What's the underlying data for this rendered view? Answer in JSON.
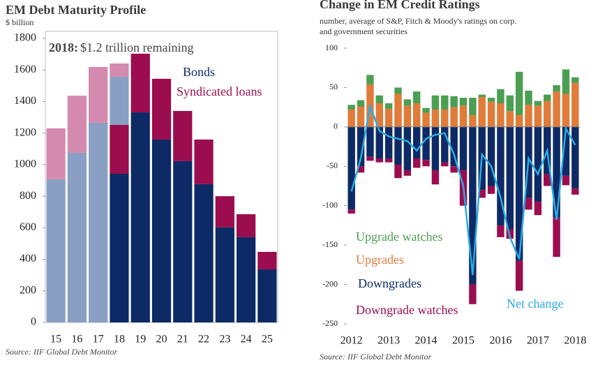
{
  "chart_data": [
    {
      "type": "bar",
      "title": "EM Debt Maturity Profile",
      "y_label": "$ billion",
      "annotation_bold": "2018:",
      "annotation": "$1.2 trillion remaining",
      "source": "Source: IIF Global Debt Monitor",
      "categories": [
        "15",
        "16",
        "17",
        "18",
        "19",
        "20",
        "21",
        "22",
        "23",
        "24",
        "25"
      ],
      "ylim": [
        0,
        1800
      ],
      "yticks": [
        0,
        200,
        400,
        600,
        800,
        1000,
        1200,
        1400,
        1600,
        1800
      ],
      "series": [
        {
          "name": "Bonds",
          "color": "#0d2a66",
          "values": [
            null,
            null,
            null,
            942,
            1331,
            1159,
            1022,
            876,
            602,
            540,
            336
          ]
        },
        {
          "name": "Syndicated loans",
          "color": "#9b0d4f",
          "values": [
            null,
            null,
            null,
            310,
            372,
            385,
            318,
            283,
            198,
            146,
            111
          ]
        },
        {
          "color": "#8a9fc4",
          "values": [
            907,
            1075,
            1265,
            305,
            null,
            null,
            null,
            null,
            null,
            null,
            null
          ]
        },
        {
          "color": "#d48aaf",
          "values": [
            323,
            362,
            354,
            84,
            null,
            null,
            null,
            null,
            null,
            null,
            null
          ]
        }
      ]
    },
    {
      "type": "bar",
      "title": "Change in EM Credit Ratings",
      "subtitle": [
        "number, average of S&P, Fitch & Moody's ratings on corp.",
        "and government securities"
      ],
      "source": "Source: IIF Global Debt Monitor",
      "categories": [
        "2012",
        null,
        null,
        null,
        "2013",
        null,
        null,
        null,
        "2014",
        null,
        null,
        null,
        "2015",
        null,
        null,
        null,
        "2016",
        null,
        null,
        null,
        "2017",
        null,
        null,
        null,
        "2018"
      ],
      "ylim": [
        -250,
        100
      ],
      "yticks": [
        -250,
        -200,
        -150,
        -100,
        -50,
        0,
        50,
        100
      ],
      "series": [
        {
          "name": "Upgrades",
          "color": "#e07b39",
          "values": [
            22,
            26,
            54,
            30,
            23,
            42,
            27,
            30,
            18,
            22,
            22,
            25,
            27,
            15,
            38,
            32,
            30,
            20,
            15,
            28,
            27,
            33,
            45,
            42,
            56
          ]
        },
        {
          "name": "Upgrade watches",
          "color": "#4c9e52",
          "values": [
            6,
            8,
            12,
            10,
            7,
            8,
            8,
            15,
            6,
            18,
            18,
            14,
            10,
            22,
            3,
            5,
            18,
            20,
            55,
            18,
            6,
            8,
            8,
            31,
            7
          ]
        },
        {
          "name": "Downgrades",
          "color": "#0d2a66",
          "values": [
            -105,
            -50,
            -38,
            -40,
            -40,
            -48,
            -55,
            -40,
            -42,
            -55,
            -45,
            -50,
            -55,
            -200,
            -80,
            -75,
            -125,
            -130,
            -170,
            -90,
            -95,
            -60,
            -115,
            -62,
            -78
          ]
        },
        {
          "name": "Downgrade watches",
          "color": "#9b0d4f",
          "values": [
            -5,
            -8,
            -5,
            -5,
            -5,
            -17,
            -7,
            -12,
            -8,
            -18,
            -5,
            -8,
            -45,
            -25,
            -10,
            -10,
            -15,
            -12,
            -38,
            -15,
            -17,
            -15,
            -50,
            -12,
            -8
          ]
        },
        {
          "name": "Net change",
          "type": "line",
          "color": "#29abe2",
          "values": [
            -82,
            -40,
            26,
            -5,
            -12,
            -15,
            -18,
            -30,
            -15,
            -10,
            -8,
            -35,
            -75,
            -188,
            -35,
            -50,
            -90,
            -140,
            -168,
            -40,
            -60,
            -30,
            -118,
            -2,
            -23
          ]
        }
      ]
    }
  ]
}
